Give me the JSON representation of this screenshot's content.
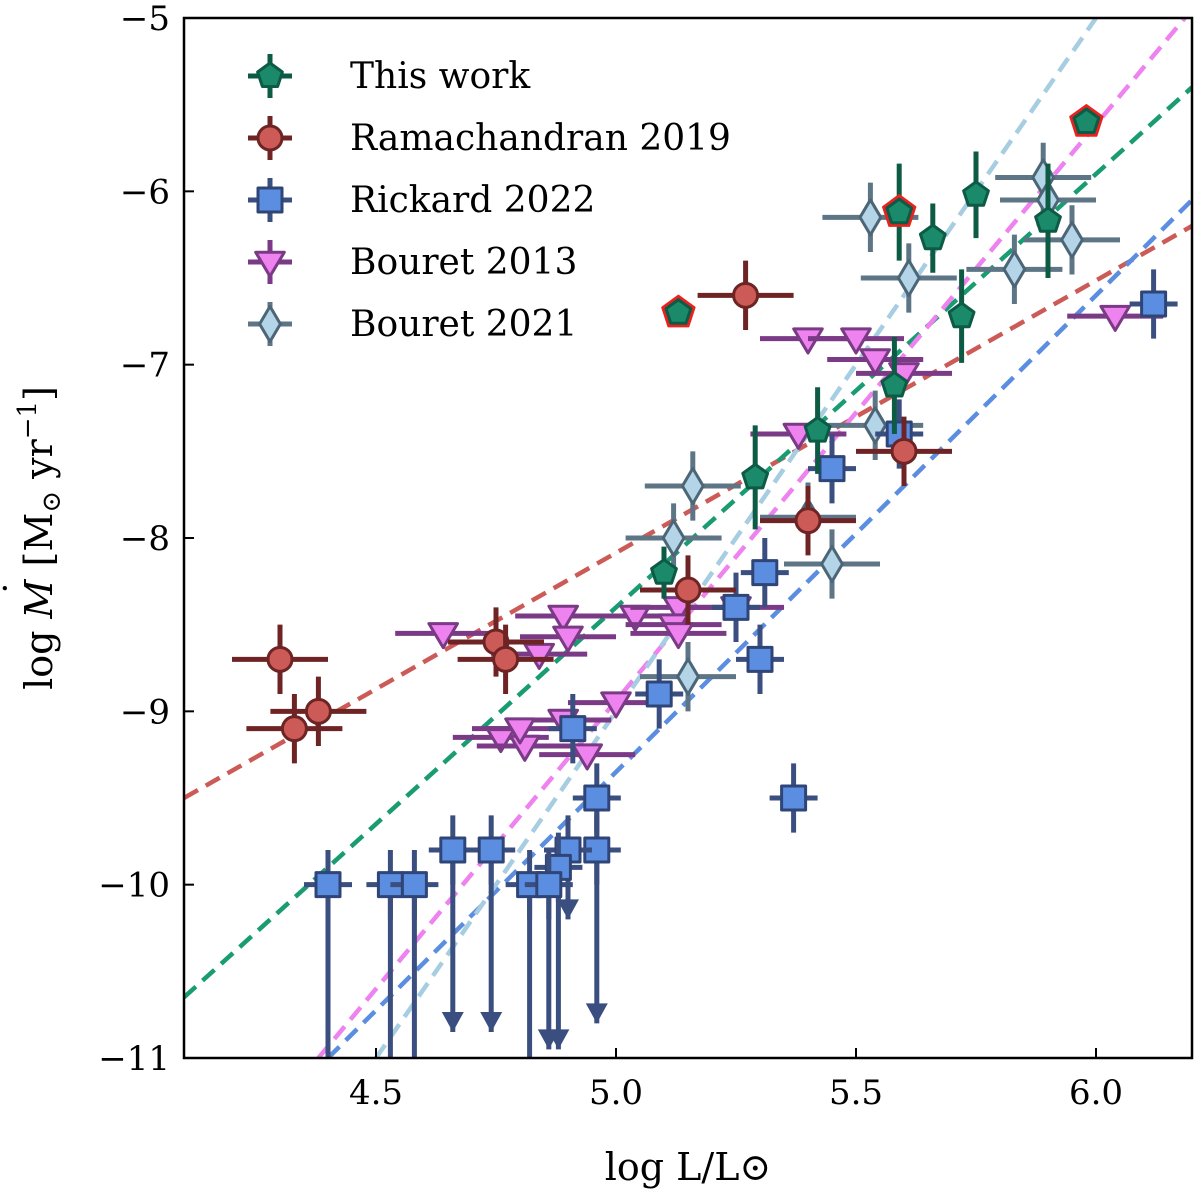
{
  "chart_data": {
    "type": "scatter",
    "title": "",
    "xlabel": "log L/L⊙",
    "ylabel_parts": {
      "lead": "log ",
      "symbol": "M",
      "dot": "˙",
      "unit_open": " [M",
      "sun": "⊙",
      "unit_mid": " yr",
      "exp": "−1",
      "unit_close": "]"
    },
    "xlim": [
      4.1,
      6.2
    ],
    "ylim": [
      -11,
      -5
    ],
    "xticks": [
      4.5,
      5.0,
      5.5,
      6.0
    ],
    "xtick_labels": [
      "4.5",
      "5.0",
      "5.5",
      "6.0"
    ],
    "yticks": [
      -11,
      -10,
      -9,
      -8,
      -7,
      -6,
      -5
    ],
    "ytick_labels": [
      "−11",
      "−10",
      "−9",
      "−8",
      "−7",
      "−6",
      "−5"
    ],
    "grid": false,
    "legend_position": "top-left",
    "series": [
      {
        "name": "This work",
        "marker": "pentagon",
        "color": "#1a8a6a",
        "edge": "#0d5a45",
        "err_color": "#0d5a45",
        "points": [
          {
            "x": 5.13,
            "y": -6.7,
            "xerr": 0.0,
            "yerr": 0.05,
            "highlight": true
          },
          {
            "x": 5.59,
            "y": -6.12,
            "xerr": 0.0,
            "yerr": 0.28,
            "highlight": true
          },
          {
            "x": 5.98,
            "y": -5.6,
            "xerr": 0.0,
            "yerr": 0.05,
            "highlight": true
          },
          {
            "x": 5.66,
            "y": -6.27,
            "xerr": 0.0,
            "yerr": 0.2
          },
          {
            "x": 5.75,
            "y": -6.02,
            "xerr": 0.0,
            "yerr": 0.25
          },
          {
            "x": 5.9,
            "y": -6.17,
            "xerr": 0.0,
            "yerr": 0.33
          },
          {
            "x": 5.72,
            "y": -6.72,
            "xerr": 0.0,
            "yerr": 0.27
          },
          {
            "x": 5.58,
            "y": -7.12,
            "xerr": 0.0,
            "yerr": 0.28
          },
          {
            "x": 5.29,
            "y": -7.65,
            "xerr": 0.0,
            "yerr": 0.3
          },
          {
            "x": 5.42,
            "y": -7.38,
            "xerr": 0.0,
            "yerr": 0.25
          },
          {
            "x": 5.1,
            "y": -8.2,
            "xerr": 0.0,
            "yerr": 0.15
          }
        ]
      },
      {
        "name": "Ramachandran 2019",
        "marker": "circle",
        "color": "#cc5a56",
        "edge": "#6e2424",
        "err_color": "#6e2424",
        "points": [
          {
            "x": 5.27,
            "y": -6.6,
            "xerr": 0.1,
            "yerr": 0.2
          },
          {
            "x": 5.6,
            "y": -7.5,
            "xerr": 0.1,
            "yerr": 0.2
          },
          {
            "x": 5.4,
            "y": -7.9,
            "xerr": 0.1,
            "yerr": 0.2
          },
          {
            "x": 5.15,
            "y": -8.3,
            "xerr": 0.1,
            "yerr": 0.2
          },
          {
            "x": 4.3,
            "y": -8.7,
            "xerr": 0.1,
            "yerr": 0.2
          },
          {
            "x": 4.75,
            "y": -8.6,
            "xerr": 0.1,
            "yerr": 0.2
          },
          {
            "x": 4.77,
            "y": -8.7,
            "xerr": 0.1,
            "yerr": 0.2
          },
          {
            "x": 4.33,
            "y": -9.1,
            "xerr": 0.1,
            "yerr": 0.2
          },
          {
            "x": 4.38,
            "y": -9.0,
            "xerr": 0.1,
            "yerr": 0.2
          }
        ]
      },
      {
        "name": "Rickard 2022",
        "marker": "square",
        "color": "#5b8ee0",
        "edge": "#2f4577",
        "err_color": "#3a4f7f",
        "points": [
          {
            "x": 6.12,
            "y": -6.65,
            "xerr": 0.05,
            "yerr": 0.2
          },
          {
            "x": 5.59,
            "y": -7.4,
            "xerr": 0.05,
            "yerr": 0.2
          },
          {
            "x": 5.45,
            "y": -7.6,
            "xerr": 0.05,
            "yerr": 0.2
          },
          {
            "x": 5.31,
            "y": -8.2,
            "xerr": 0.05,
            "yerr": 0.2
          },
          {
            "x": 5.25,
            "y": -8.4,
            "xerr": 0.05,
            "yerr": 0.2
          },
          {
            "x": 5.3,
            "y": -8.7,
            "xerr": 0.05,
            "yerr": 0.2
          },
          {
            "x": 5.09,
            "y": -8.9,
            "xerr": 0.05,
            "yerr": 0.2
          },
          {
            "x": 4.91,
            "y": -9.1,
            "xerr": 0.05,
            "yerr": 0.2
          },
          {
            "x": 5.37,
            "y": -9.5,
            "xerr": 0.05,
            "yerr": 0.2
          },
          {
            "x": 4.96,
            "y": -9.5,
            "xerr": 0.05,
            "yerr": 0.2,
            "upper_to": -10.8
          },
          {
            "x": 4.96,
            "y": -9.8,
            "xerr": 0.05,
            "yerr": 0.2
          },
          {
            "x": 4.9,
            "y": -9.8,
            "xerr": 0.05,
            "yerr": 0.2,
            "upper_to": -10.2
          },
          {
            "x": 4.66,
            "y": -9.8,
            "xerr": 0.05,
            "yerr": 0.2,
            "upper_to": -10.85
          },
          {
            "x": 4.74,
            "y": -9.8,
            "xerr": 0.05,
            "yerr": 0.2,
            "upper_to": -10.85
          },
          {
            "x": 4.88,
            "y": -9.9,
            "xerr": 0.05,
            "yerr": 0.2,
            "upper_to": -10.95
          },
          {
            "x": 4.4,
            "y": -10.0,
            "xerr": 0.05,
            "yerr": 0.2,
            "upper_to": -11.2
          },
          {
            "x": 4.53,
            "y": -10.0,
            "xerr": 0.05,
            "yerr": 0.2,
            "upper_to": -11.2
          },
          {
            "x": 4.58,
            "y": -10.0,
            "xerr": 0.05,
            "yerr": 0.2,
            "upper_to": -11.2
          },
          {
            "x": 4.82,
            "y": -10.0,
            "xerr": 0.05,
            "yerr": 0.2,
            "upper_to": -11.2
          },
          {
            "x": 4.86,
            "y": -10.0,
            "xerr": 0.05,
            "yerr": 0.2,
            "upper_to": -10.95
          }
        ]
      },
      {
        "name": "Bouret 2013",
        "marker": "triangle_down",
        "color": "#ee82ee",
        "edge": "#7a3a86",
        "err_color": "#7a3a86",
        "points": [
          {
            "x": 5.4,
            "y": -6.85,
            "xerr": 0.1,
            "yerr": 0.0
          },
          {
            "x": 5.5,
            "y": -6.85,
            "xerr": 0.1,
            "yerr": 0.0
          },
          {
            "x": 5.54,
            "y": -6.97,
            "xerr": 0.1,
            "yerr": 0.0
          },
          {
            "x": 5.6,
            "y": -7.05,
            "xerr": 0.1,
            "yerr": 0.0
          },
          {
            "x": 5.38,
            "y": -7.4,
            "xerr": 0.1,
            "yerr": 0.0
          },
          {
            "x": 5.04,
            "y": -8.45,
            "xerr": 0.1,
            "yerr": 0.0
          },
          {
            "x": 5.13,
            "y": -8.4,
            "xerr": 0.1,
            "yerr": 0.0
          },
          {
            "x": 5.25,
            "y": -8.4,
            "xerr": 0.1,
            "yerr": 0.0
          },
          {
            "x": 5.12,
            "y": -8.5,
            "xerr": 0.1,
            "yerr": 0.0
          },
          {
            "x": 5.13,
            "y": -8.55,
            "xerr": 0.1,
            "yerr": 0.0
          },
          {
            "x": 4.64,
            "y": -8.55,
            "xerr": 0.1,
            "yerr": 0.0
          },
          {
            "x": 4.89,
            "y": -8.45,
            "xerr": 0.1,
            "yerr": 0.0
          },
          {
            "x": 4.9,
            "y": -8.57,
            "xerr": 0.1,
            "yerr": 0.0
          },
          {
            "x": 4.84,
            "y": -8.67,
            "xerr": 0.1,
            "yerr": 0.0
          },
          {
            "x": 4.89,
            "y": -9.05,
            "xerr": 0.1,
            "yerr": 0.0
          },
          {
            "x": 4.76,
            "y": -9.15,
            "xerr": 0.1,
            "yerr": 0.0
          },
          {
            "x": 4.81,
            "y": -9.2,
            "xerr": 0.1,
            "yerr": 0.0
          },
          {
            "x": 4.8,
            "y": -9.1,
            "xerr": 0.1,
            "yerr": 0.0
          },
          {
            "x": 4.94,
            "y": -9.25,
            "xerr": 0.1,
            "yerr": 0.0
          },
          {
            "x": 5.0,
            "y": -8.95,
            "xerr": 0.1,
            "yerr": 0.0
          },
          {
            "x": 6.04,
            "y": -6.72,
            "xerr": 0.1,
            "yerr": 0.0
          }
        ]
      },
      {
        "name": "Bouret 2021",
        "marker": "diamond",
        "color": "#b4d4e8",
        "edge": "#4c6677",
        "err_color": "#5e7585",
        "points": [
          {
            "x": 5.89,
            "y": -5.92,
            "xerr": 0.1,
            "yerr": 0.2
          },
          {
            "x": 5.9,
            "y": -6.05,
            "xerr": 0.1,
            "yerr": 0.2
          },
          {
            "x": 5.53,
            "y": -6.15,
            "xerr": 0.1,
            "yerr": 0.2
          },
          {
            "x": 5.95,
            "y": -6.28,
            "xerr": 0.1,
            "yerr": 0.2
          },
          {
            "x": 5.83,
            "y": -6.45,
            "xerr": 0.1,
            "yerr": 0.2
          },
          {
            "x": 5.61,
            "y": -6.5,
            "xerr": 0.1,
            "yerr": 0.2
          },
          {
            "x": 5.54,
            "y": -7.35,
            "xerr": 0.1,
            "yerr": 0.2
          },
          {
            "x": 5.16,
            "y": -7.7,
            "xerr": 0.1,
            "yerr": 0.2
          },
          {
            "x": 5.4,
            "y": -7.88,
            "xerr": 0.1,
            "yerr": 0.2
          },
          {
            "x": 5.12,
            "y": -8.0,
            "xerr": 0.1,
            "yerr": 0.2
          },
          {
            "x": 5.45,
            "y": -8.15,
            "xerr": 0.1,
            "yerr": 0.2
          },
          {
            "x": 5.15,
            "y": -8.8,
            "xerr": 0.1,
            "yerr": 0.2
          }
        ]
      }
    ],
    "fit_lines": [
      {
        "name": "Ramachandran 2019 fit",
        "color": "#cc5a56",
        "x": [
          4.1,
          6.2
        ],
        "y": [
          -9.5,
          -6.2
        ]
      },
      {
        "name": "This work fit",
        "color": "#1a9c73",
        "x": [
          4.1,
          6.2
        ],
        "y": [
          -10.65,
          -5.4
        ]
      },
      {
        "name": "Rickard 2022 fit",
        "color": "#5b8ee0",
        "x": [
          4.4,
          6.2
        ],
        "y": [
          -11.0,
          -6.05
        ]
      },
      {
        "name": "Bouret 2013 fit",
        "color": "#ee82ee",
        "x": [
          4.38,
          6.2
        ],
        "y": [
          -11.0,
          -4.95
        ]
      },
      {
        "name": "Bouret 2021 fit",
        "color": "#a6cde2",
        "x": [
          4.5,
          6.0
        ],
        "y": [
          -11.0,
          -5.0
        ]
      }
    ]
  }
}
